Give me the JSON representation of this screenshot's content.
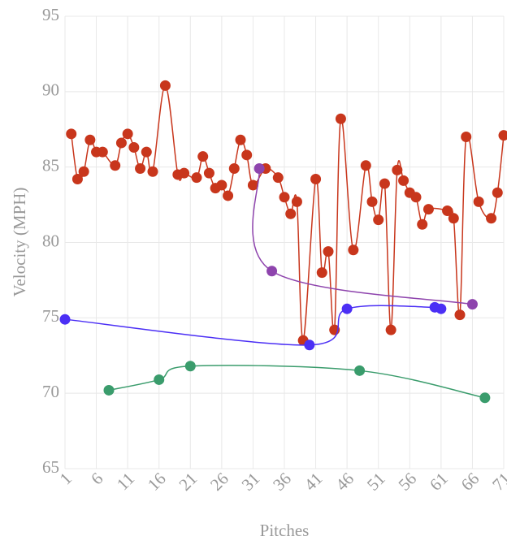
{
  "chart_data": {
    "type": "line",
    "xlabel": "Pitches",
    "ylabel": "Velocity (MPH)",
    "xlim": [
      1,
      71
    ],
    "ylim": [
      65,
      95
    ],
    "xticks": [
      1,
      6,
      11,
      16,
      21,
      26,
      31,
      36,
      41,
      46,
      51,
      56,
      61,
      66,
      71
    ],
    "yticks": [
      65,
      70,
      75,
      80,
      85,
      90,
      95
    ],
    "grid": true,
    "series": [
      {
        "color": "#c8361c",
        "x": [
          2,
          3,
          4,
          5,
          6,
          7,
          9,
          10,
          11,
          12,
          13,
          14,
          15,
          17,
          19,
          20,
          22,
          23,
          24,
          25,
          26,
          27,
          28,
          29,
          30,
          31,
          33,
          35,
          36,
          37,
          38,
          39,
          41,
          42,
          43,
          44,
          45,
          47,
          49,
          50,
          51,
          52,
          53,
          54,
          55,
          56,
          57,
          58,
          59,
          62,
          63,
          64,
          65,
          67,
          69,
          70,
          71
        ],
        "values": [
          87.2,
          84.2,
          84.7,
          86.8,
          86.0,
          86.0,
          85.1,
          86.6,
          87.2,
          86.3,
          84.9,
          86.0,
          84.7,
          90.4,
          84.5,
          84.6,
          84.3,
          85.7,
          84.6,
          83.6,
          83.8,
          83.1,
          84.9,
          86.8,
          85.8,
          83.8,
          84.9,
          84.3,
          83.0,
          81.9,
          82.7,
          73.5,
          84.2,
          78.0,
          79.4,
          74.2,
          88.2,
          79.5,
          85.1,
          82.7,
          81.5,
          83.9,
          74.2,
          84.8,
          84.1,
          83.3,
          83.0,
          81.2,
          82.2,
          82.1,
          81.6,
          75.2,
          87.0,
          82.7,
          81.6,
          83.3,
          87.1
        ]
      },
      {
        "color": "#8e44ad",
        "x": [
          32,
          34,
          66
        ],
        "values": [
          84.9,
          78.1,
          75.9
        ]
      },
      {
        "color": "#4b2ff5",
        "x": [
          1,
          40,
          46,
          60,
          61
        ],
        "values": [
          74.9,
          73.2,
          75.6,
          75.7,
          75.6
        ]
      },
      {
        "color": "#3a9c6c",
        "x": [
          8,
          16,
          21,
          48,
          68
        ],
        "values": [
          70.2,
          70.9,
          71.8,
          71.5,
          69.7
        ]
      }
    ]
  }
}
